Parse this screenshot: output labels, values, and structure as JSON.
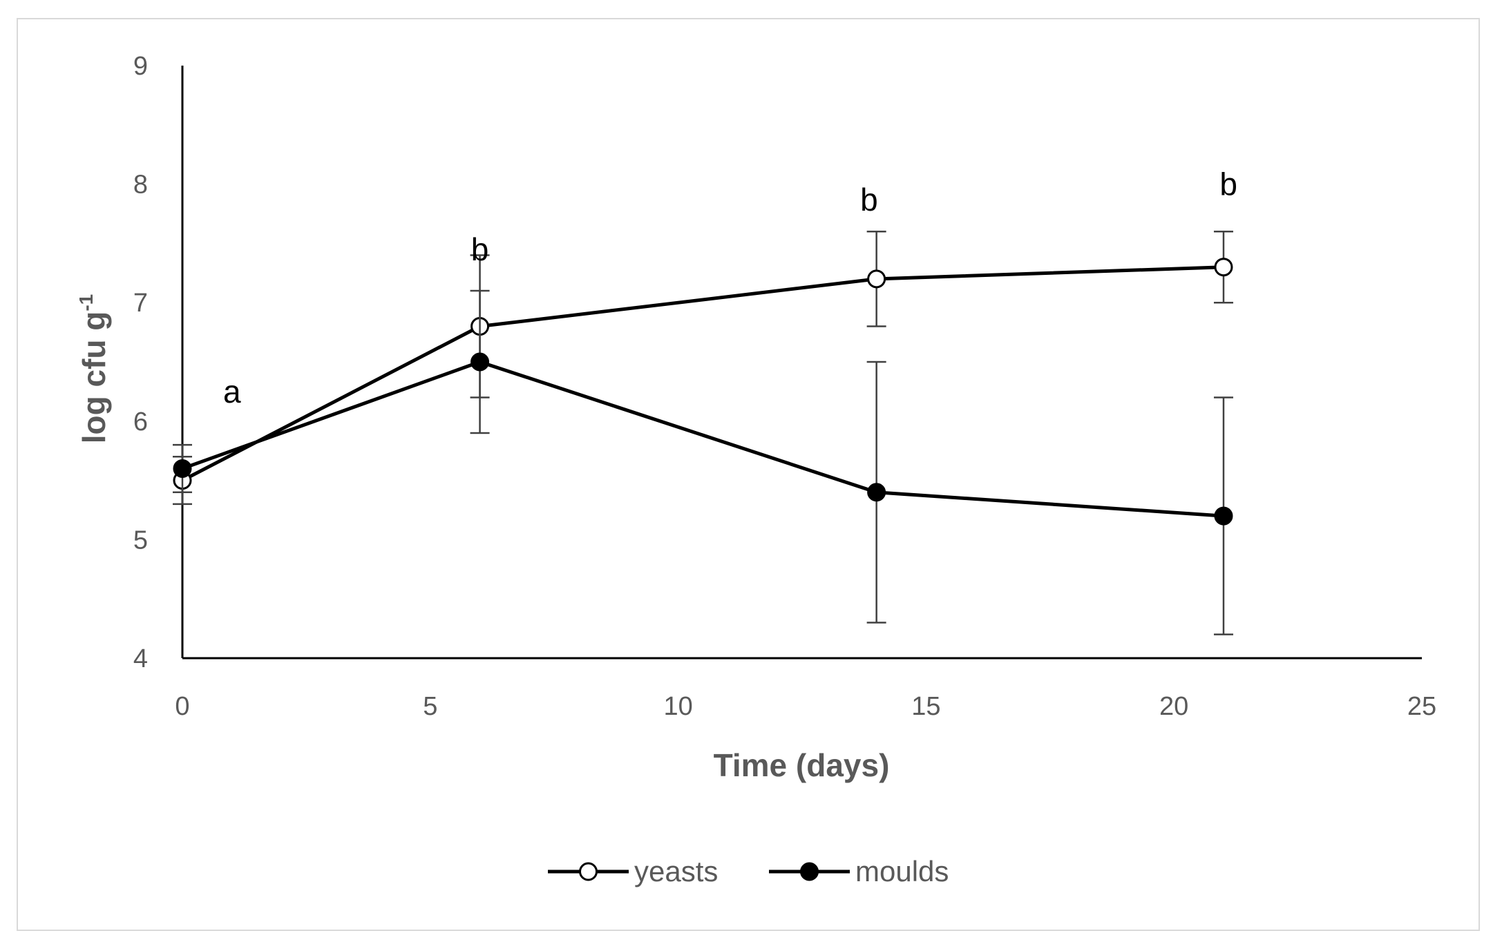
{
  "chart_data": {
    "type": "line",
    "title": "",
    "xlabel": "Time (days)",
    "ylabel_main": "log cfu g",
    "ylabel_sup": "-1",
    "xlim": [
      0,
      25
    ],
    "ylim": [
      4,
      9
    ],
    "xticks": [
      0,
      5,
      10,
      15,
      20,
      25
    ],
    "yticks": [
      4,
      5,
      6,
      7,
      8,
      9
    ],
    "grid": false,
    "legend_position": "bottom-center",
    "series": [
      {
        "name": "yeasts",
        "marker": "open-circle",
        "x": [
          0,
          6,
          14,
          21
        ],
        "values": [
          5.5,
          6.8,
          7.2,
          7.3
        ],
        "error": [
          0.2,
          0.6,
          0.4,
          0.3
        ]
      },
      {
        "name": "moulds",
        "marker": "filled-circle",
        "x": [
          0,
          6,
          14,
          21
        ],
        "values": [
          5.6,
          6.5,
          5.4,
          5.2
        ],
        "error": [
          0.2,
          0.6,
          1.1,
          1.0
        ]
      }
    ],
    "annotations": [
      {
        "text": "a",
        "x": 1.0,
        "y": 6.25
      },
      {
        "text": "b",
        "x": 6.0,
        "y": 7.45
      },
      {
        "text": "b",
        "x": 13.85,
        "y": 7.87
      },
      {
        "text": "b",
        "x": 21.1,
        "y": 8.0
      }
    ]
  },
  "colors": {
    "axis": "#000000",
    "line": "#000000",
    "text": "#595959",
    "frame": "#d9d9d9"
  }
}
